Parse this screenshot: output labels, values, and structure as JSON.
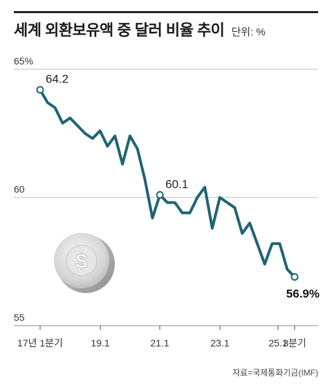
{
  "header": {
    "title": "세계 외환보유액 중 달러 비율 추이",
    "unit": "단위: %"
  },
  "footer": {
    "source": "자료=국제통화기금(IMF)"
  },
  "chart_data": {
    "type": "line",
    "title": "세계 외환보유액 중 달러 비율 추이",
    "ylabel": "%",
    "ylim": [
      55,
      65
    ],
    "yticks": [
      "55",
      "60",
      "65%"
    ],
    "xticks": [
      "17년 1분기",
      "19.1",
      "21.1",
      "23.1",
      "25.1",
      "3분기"
    ],
    "grid": true,
    "x": [
      "17.1",
      "17.2",
      "17.3",
      "17.4",
      "18.1",
      "18.2",
      "18.3",
      "18.4",
      "19.1",
      "19.2",
      "19.3",
      "19.4",
      "20.1",
      "20.2",
      "20.3",
      "20.4",
      "21.1",
      "21.2",
      "21.3",
      "21.4",
      "22.1",
      "22.2",
      "22.3",
      "22.4",
      "23.1",
      "23.2",
      "23.3",
      "23.4",
      "24.1",
      "24.2",
      "24.3",
      "24.4",
      "25.1",
      "25.2",
      "25.3"
    ],
    "series": [
      {
        "values": [
          64.2,
          63.7,
          63.5,
          62.9,
          63.1,
          62.8,
          62.5,
          62.3,
          62.6,
          62.0,
          62.4,
          61.3,
          62.4,
          61.9,
          60.7,
          59.2,
          60.1,
          59.8,
          59.8,
          59.4,
          59.4,
          60.0,
          60.4,
          58.8,
          60.0,
          59.8,
          59.6,
          58.6,
          59.0,
          58.2,
          57.4,
          58.2,
          58.2,
          57.2,
          56.9
        ],
        "labels": {
          "0": "64.2",
          "16": "60.1",
          "34": "56.9%"
        }
      }
    ]
  },
  "icon": "dollar-coin-icon"
}
